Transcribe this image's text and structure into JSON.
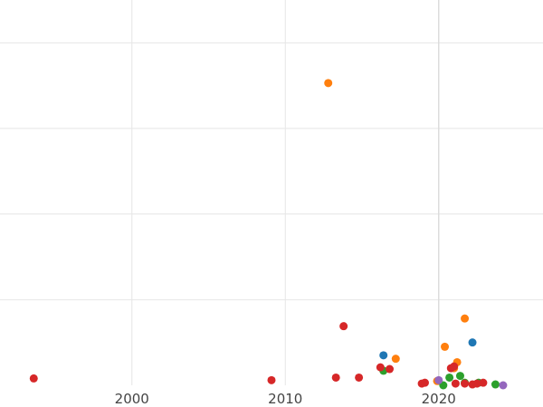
{
  "chart_data": {
    "type": "scatter",
    "title": "",
    "xlabel": "",
    "ylabel": "",
    "xlim": [
      1991.4,
      2026.8
    ],
    "ylim": [
      0,
      450
    ],
    "grid": true,
    "x_ticks": [
      2000,
      2010,
      2020
    ],
    "x_tick_labels": [
      "2000",
      "2010",
      "2020"
    ],
    "y_gridlines": [
      100,
      200,
      300,
      400
    ],
    "series": [
      {
        "color": "#1f77b4",
        "points": [
          [
            2016.4,
            35
          ],
          [
            2022.2,
            50
          ]
        ]
      },
      {
        "color": "#ff7f0e",
        "points": [
          [
            2012.8,
            353
          ],
          [
            2021.7,
            78
          ],
          [
            2020.4,
            45
          ],
          [
            2017.2,
            31
          ],
          [
            2021.2,
            27
          ],
          [
            2021.0,
            20
          ],
          [
            2019.9,
            5
          ]
        ]
      },
      {
        "color": "#2ca02c",
        "points": [
          [
            2016.4,
            17
          ],
          [
            2021.4,
            11
          ],
          [
            2020.7,
            9
          ],
          [
            2022.6,
            3
          ],
          [
            2023.7,
            1
          ],
          [
            2020.3,
            0
          ],
          [
            2021.7,
            3
          ]
        ]
      },
      {
        "color": "#d62728",
        "points": [
          [
            1993.6,
            8
          ],
          [
            2009.1,
            6
          ],
          [
            2013.3,
            9
          ],
          [
            2014.8,
            9
          ],
          [
            2013.8,
            69
          ],
          [
            2016.2,
            21
          ],
          [
            2016.8,
            19
          ],
          [
            2018.9,
            2
          ],
          [
            2019.1,
            3
          ],
          [
            2020.8,
            20
          ],
          [
            2021.0,
            22
          ],
          [
            2021.1,
            2
          ],
          [
            2021.7,
            2
          ],
          [
            2022.2,
            1
          ],
          [
            2022.5,
            2
          ],
          [
            2022.9,
            3
          ]
        ]
      },
      {
        "color": "#9467bd",
        "points": [
          [
            2020.0,
            6
          ],
          [
            2024.2,
            0
          ]
        ]
      }
    ]
  }
}
